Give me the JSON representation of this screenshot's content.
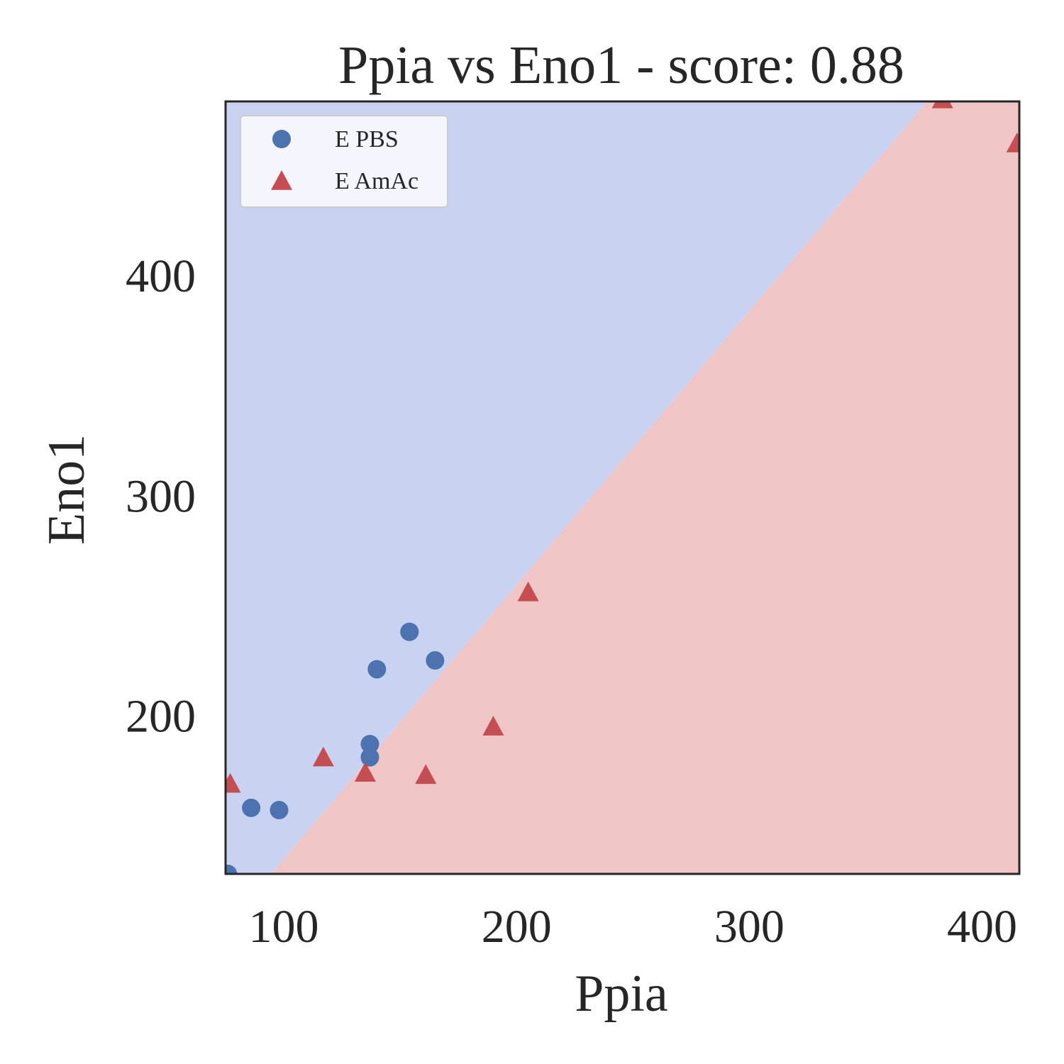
{
  "chart_data": {
    "type": "scatter",
    "title": "Ppia vs Eno1 - score: 0.88",
    "xlabel": "Ppia",
    "ylabel": "Eno1",
    "xlim": [
      75,
      416
    ],
    "ylim": [
      128,
      479
    ],
    "x_ticks": [
      100,
      200,
      300,
      400
    ],
    "y_ticks": [
      200,
      300,
      400
    ],
    "grid": false,
    "legend_position": "top-left",
    "decision_regions": {
      "boundary": [
        [
          94.6,
          128
        ],
        [
          376.5,
          479
        ]
      ],
      "upper_left_class": "E PBS",
      "lower_right_class": "E AmAc",
      "colors": {
        "E PBS": "#c9d2f1",
        "E AmAc": "#efc5c5"
      }
    },
    "series": [
      {
        "name": "E PBS",
        "marker": "circle",
        "color": "#4c72b0",
        "points": [
          [
            76,
            128
          ],
          [
            86,
            158
          ],
          [
            98,
            157
          ],
          [
            137,
            187
          ],
          [
            137,
            181
          ],
          [
            140,
            221
          ],
          [
            154,
            238
          ],
          [
            165,
            225
          ]
        ]
      },
      {
        "name": "E AmAc",
        "marker": "triangle",
        "color": "#c44e52",
        "points": [
          [
            77,
            169
          ],
          [
            117,
            181
          ],
          [
            135,
            174
          ],
          [
            161,
            173
          ],
          [
            190,
            195
          ],
          [
            205,
            256
          ],
          [
            383,
            480
          ],
          [
            415,
            460
          ]
        ]
      }
    ]
  }
}
